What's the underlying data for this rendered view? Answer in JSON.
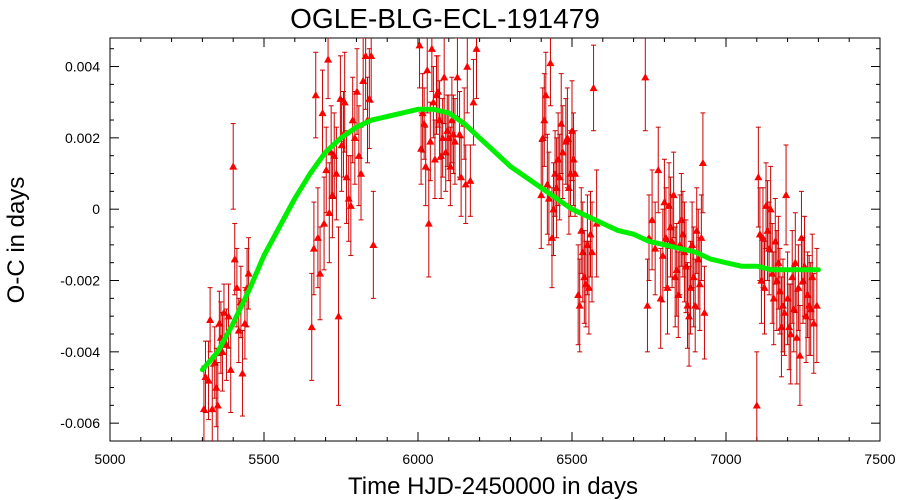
{
  "chart_data": {
    "type": "scatter",
    "title": "OGLE-BLG-ECL-191479",
    "xlabel": "Time HJD-2450000 in days",
    "ylabel": "O-C in days",
    "xlim": [
      5000,
      7500
    ],
    "ylim": [
      -0.0065,
      0.0048
    ],
    "xticks": [
      5000,
      5500,
      6000,
      6500,
      7000,
      7500
    ],
    "xtick_labels": [
      "5000",
      "5500",
      "6000",
      "6500",
      "7000",
      "7500"
    ],
    "yticks": [
      -0.006,
      -0.004,
      -0.002,
      0,
      0.002,
      0.004
    ],
    "ytick_labels": [
      "-0.006",
      "-0.004",
      "-0.002",
      "0",
      "0.002",
      "0.004"
    ],
    "grid": false,
    "legend": "none",
    "colors": {
      "points": "#ff0000",
      "errorbars": "#cc0000",
      "fit": "#00ee00"
    },
    "series": [
      {
        "marker": "triangle",
        "points": [
          [
            5305,
            -0.0056,
            0.0012
          ],
          [
            5310,
            -0.0047,
            0.001
          ],
          [
            5320,
            -0.0048,
            0.0011
          ],
          [
            5325,
            -0.0031,
            0.0009
          ],
          [
            5332,
            -0.0056,
            0.0012
          ],
          [
            5340,
            -0.0043,
            0.001
          ],
          [
            5345,
            -0.005,
            0.0011
          ],
          [
            5350,
            -0.0055,
            0.0012
          ],
          [
            5355,
            -0.0032,
            0.0009
          ],
          [
            5360,
            -0.0036,
            0.001
          ],
          [
            5365,
            -0.004,
            0.0011
          ],
          [
            5370,
            -0.0029,
            0.0008
          ],
          [
            5378,
            -0.0038,
            0.001
          ],
          [
            5385,
            -0.003,
            0.0009
          ],
          [
            5392,
            -0.0045,
            0.0012
          ],
          [
            5400,
            0.0012,
            0.0012
          ],
          [
            5405,
            -0.0014,
            0.001
          ],
          [
            5412,
            -0.0022,
            0.0011
          ],
          [
            5418,
            -0.0034,
            0.0009
          ],
          [
            5425,
            -0.0026,
            0.001
          ],
          [
            5430,
            -0.0046,
            0.0012
          ],
          [
            5438,
            -0.0032,
            0.001
          ],
          [
            5445,
            -0.0022,
            0.0011
          ],
          [
            5450,
            -0.0018,
            0.001
          ],
          [
            5655,
            -0.0033,
            0.0015
          ],
          [
            5662,
            -0.0011,
            0.0013
          ],
          [
            5668,
            0.0032,
            0.0012
          ],
          [
            5675,
            -0.0008,
            0.0014
          ],
          [
            5682,
            -0.0018,
            0.0013
          ],
          [
            5690,
            0.0027,
            0.0012
          ],
          [
            5695,
            -0.0004,
            0.0013
          ],
          [
            5702,
            0.0011,
            0.0012
          ],
          [
            5708,
            0.0042,
            0.0011
          ],
          [
            5712,
            -0.0001,
            0.0014
          ],
          [
            5718,
            0.0016,
            0.0013
          ],
          [
            5722,
            0.0004,
            0.0012
          ],
          [
            5728,
            0.0015,
            0.0012
          ],
          [
            5735,
            0.001,
            0.0013
          ],
          [
            5742,
            -0.003,
            0.0025
          ],
          [
            5748,
            0.0031,
            0.0012
          ],
          [
            5752,
            0.0018,
            0.0013
          ],
          [
            5758,
            0.0021,
            0.0012
          ],
          [
            5762,
            0.003,
            0.0014
          ],
          [
            5768,
            0.0009,
            0.0013
          ],
          [
            5775,
            0.0003,
            0.0012
          ],
          [
            5782,
            0.0001,
            0.0014
          ],
          [
            5788,
            0.0025,
            0.0012
          ],
          [
            5795,
            0.002,
            0.0013
          ],
          [
            5802,
            0.0033,
            0.0012
          ],
          [
            5808,
            0.0015,
            0.0014
          ],
          [
            5815,
            0.001,
            0.0013
          ],
          [
            5822,
            0.0036,
            0.0012
          ],
          [
            5830,
            0.0043,
            0.0015
          ],
          [
            5836,
            0.0025,
            0.0012
          ],
          [
            5842,
            0.0031,
            0.0014
          ],
          [
            5848,
            0.0043,
            0.0013
          ],
          [
            5855,
            -0.001,
            0.0015
          ],
          [
            6005,
            0.0046,
            0.0012
          ],
          [
            6010,
            0.0017,
            0.001
          ],
          [
            6015,
            0.0027,
            0.0011
          ],
          [
            6020,
            0.0024,
            0.001
          ],
          [
            6025,
            0.0012,
            0.0011
          ],
          [
            6030,
            0.0039,
            0.0012
          ],
          [
            6035,
            -0.0004,
            0.0015
          ],
          [
            6040,
            0.0019,
            0.0011
          ],
          [
            6045,
            0.0045,
            0.0012
          ],
          [
            6050,
            0.003,
            0.001
          ],
          [
            6055,
            0.0014,
            0.0011
          ],
          [
            6060,
            0.0032,
            0.0011
          ],
          [
            6065,
            0.0033,
            0.001
          ],
          [
            6070,
            0.0025,
            0.0011
          ],
          [
            6075,
            0.0015,
            0.0012
          ],
          [
            6080,
            0.002,
            0.0011
          ],
          [
            6085,
            0.0037,
            0.0013
          ],
          [
            6090,
            0.0016,
            0.0011
          ],
          [
            6095,
            0.0022,
            0.001
          ],
          [
            6100,
            0.002,
            0.0012
          ],
          [
            6105,
            0.0012,
            0.0011
          ],
          [
            6110,
            0.0025,
            0.0012
          ],
          [
            6115,
            0.0021,
            0.0011
          ],
          [
            6120,
            0.0019,
            0.0012
          ],
          [
            6128,
            0.0037,
            0.0011
          ],
          [
            6135,
            0.0021,
            0.0012
          ],
          [
            6140,
            0.0009,
            0.0011
          ],
          [
            6150,
            0.0024,
            0.001
          ],
          [
            6155,
            0.0007,
            0.0011
          ],
          [
            6160,
            0.004,
            0.0013
          ],
          [
            6170,
            0.0008,
            0.001
          ],
          [
            6180,
            0.003,
            0.0012
          ],
          [
            6190,
            0.0045,
            0.0014
          ],
          [
            6400,
            0.0004,
            0.0015
          ],
          [
            6405,
            0.002,
            0.0014
          ],
          [
            6410,
            0.0025,
            0.0013
          ],
          [
            6415,
            0.0032,
            0.0012
          ],
          [
            6420,
            0.0007,
            0.0014
          ],
          [
            6425,
            0.0003,
            0.0013
          ],
          [
            6430,
            0.0041,
            0.0012
          ],
          [
            6435,
            -0.0008,
            0.0014
          ],
          [
            6440,
            0.0,
            0.0013
          ],
          [
            6445,
            0.001,
            0.0012
          ],
          [
            6450,
            0.0006,
            0.0014
          ],
          [
            6455,
            0.0014,
            0.0013
          ],
          [
            6460,
            0.0009,
            0.0012
          ],
          [
            6465,
            0.0024,
            0.0014
          ],
          [
            6470,
            0.0016,
            0.0013
          ],
          [
            6480,
            0.0019,
            0.0012
          ],
          [
            6485,
            0.002,
            0.0014
          ],
          [
            6490,
            0.0006,
            0.0013
          ],
          [
            6495,
            0.001,
            0.0012
          ],
          [
            6500,
            0.0022,
            0.0014
          ],
          [
            6505,
            0.0014,
            0.0013
          ],
          [
            6510,
            0.001,
            0.0012
          ],
          [
            6520,
            -0.0024,
            0.0014
          ],
          [
            6525,
            -0.0027,
            0.0013
          ],
          [
            6530,
            -0.0006,
            0.0012
          ],
          [
            6535,
            -0.0012,
            0.0014
          ],
          [
            6540,
            -0.0019,
            0.0013
          ],
          [
            6545,
            -0.0021,
            0.0012
          ],
          [
            6550,
            -0.001,
            0.0014
          ],
          [
            6555,
            -0.0022,
            0.0013
          ],
          [
            6560,
            -0.0007,
            0.0012
          ],
          [
            6565,
            -0.0012,
            0.0014
          ],
          [
            6570,
            0.0034,
            0.0012
          ],
          [
            6580,
            -0.0004,
            0.0015
          ],
          [
            6738,
            0.0037,
            0.0015
          ],
          [
            6745,
            -0.0027,
            0.0013
          ],
          [
            6750,
            -0.0008,
            0.0012
          ],
          [
            6760,
            -0.0003,
            0.0014
          ],
          [
            6770,
            -0.0011,
            0.0013
          ],
          [
            6780,
            0.0011,
            0.0012
          ],
          [
            6788,
            -0.0025,
            0.0014
          ],
          [
            6795,
            -0.0013,
            0.0013
          ],
          [
            6800,
            0.0002,
            0.0012
          ],
          [
            6805,
            -0.0008,
            0.0014
          ],
          [
            6810,
            -0.0022,
            0.0013
          ],
          [
            6815,
            0.0001,
            0.0012
          ],
          [
            6820,
            -0.0005,
            0.0014
          ],
          [
            6825,
            -0.0009,
            0.0013
          ],
          [
            6830,
            0.0004,
            0.0012
          ],
          [
            6835,
            -0.0019,
            0.0014
          ],
          [
            6840,
            -0.0017,
            0.0013
          ],
          [
            6845,
            -0.0024,
            0.0012
          ],
          [
            6850,
            -0.001,
            0.0014
          ],
          [
            6855,
            -0.0003,
            0.0013
          ],
          [
            6860,
            -0.0007,
            0.0012
          ],
          [
            6865,
            -0.0012,
            0.0014
          ],
          [
            6870,
            -0.0016,
            0.0013
          ],
          [
            6875,
            -0.0027,
            0.0012
          ],
          [
            6880,
            -0.003,
            0.0014
          ],
          [
            6885,
            -0.0022,
            0.0013
          ],
          [
            6890,
            -0.001,
            0.0012
          ],
          [
            6895,
            -0.0019,
            0.0014
          ],
          [
            6900,
            -0.0027,
            0.0013
          ],
          [
            6905,
            -0.0006,
            0.0012
          ],
          [
            6910,
            -0.0014,
            0.0014
          ],
          [
            6915,
            -0.0021,
            0.0013
          ],
          [
            6920,
            -0.0008,
            0.0012
          ],
          [
            6925,
            0.0013,
            0.0014
          ],
          [
            6930,
            -0.0029,
            0.0013
          ],
          [
            7100,
            -0.0055,
            0.0015
          ],
          [
            7105,
            0.0009,
            0.0014
          ],
          [
            7110,
            -0.0007,
            0.0013
          ],
          [
            7115,
            -0.002,
            0.0012
          ],
          [
            7120,
            -0.0008,
            0.0014
          ],
          [
            7125,
            -0.0022,
            0.0013
          ],
          [
            7130,
            0.0001,
            0.0012
          ],
          [
            7135,
            -0.0006,
            0.0014
          ],
          [
            7140,
            -0.0011,
            0.0013
          ],
          [
            7145,
            0.0,
            0.0012
          ],
          [
            7150,
            -0.0018,
            0.0014
          ],
          [
            7155,
            -0.0025,
            0.0013
          ],
          [
            7160,
            -0.0009,
            0.0012
          ],
          [
            7165,
            -0.002,
            0.0014
          ],
          [
            7170,
            -0.0015,
            0.0013
          ],
          [
            7175,
            -0.0023,
            0.0012
          ],
          [
            7180,
            -0.0033,
            0.0014
          ],
          [
            7185,
            -0.0027,
            0.0013
          ],
          [
            7190,
            -0.0029,
            0.0012
          ],
          [
            7195,
            0.0004,
            0.0014
          ],
          [
            7200,
            -0.0025,
            0.0013
          ],
          [
            7205,
            -0.0033,
            0.0012
          ],
          [
            7210,
            -0.0035,
            0.0014
          ],
          [
            7215,
            -0.0019,
            0.0013
          ],
          [
            7220,
            -0.0028,
            0.0012
          ],
          [
            7225,
            -0.0015,
            0.0014
          ],
          [
            7230,
            -0.0036,
            0.0013
          ],
          [
            7235,
            -0.0022,
            0.0012
          ],
          [
            7240,
            -0.0041,
            0.0014
          ],
          [
            7245,
            -0.0008,
            0.0013
          ],
          [
            7250,
            -0.002,
            0.0012
          ],
          [
            7255,
            -0.0016,
            0.0014
          ],
          [
            7260,
            -0.003,
            0.0013
          ],
          [
            7265,
            -0.0024,
            0.0012
          ],
          [
            7270,
            -0.0027,
            0.0014
          ],
          [
            7275,
            -0.0028,
            0.0013
          ],
          [
            7280,
            -0.0019,
            0.0012
          ],
          [
            7285,
            -0.0032,
            0.0014
          ],
          [
            7295,
            -0.0027,
            0.0016
          ]
        ]
      },
      {
        "type": "line",
        "points": [
          [
            5300,
            -0.0045
          ],
          [
            5350,
            -0.004
          ],
          [
            5400,
            -0.0032
          ],
          [
            5450,
            -0.0023
          ],
          [
            5500,
            -0.0013
          ],
          [
            5550,
            -0.0005
          ],
          [
            5600,
            0.0003
          ],
          [
            5650,
            0.001
          ],
          [
            5700,
            0.0016
          ],
          [
            5750,
            0.002
          ],
          [
            5800,
            0.0023
          ],
          [
            5850,
            0.0025
          ],
          [
            5900,
            0.0026
          ],
          [
            5950,
            0.0027
          ],
          [
            6000,
            0.0028
          ],
          [
            6050,
            0.0028
          ],
          [
            6100,
            0.0027
          ],
          [
            6150,
            0.0024
          ],
          [
            6200,
            0.002
          ],
          [
            6250,
            0.0016
          ],
          [
            6300,
            0.0012
          ],
          [
            6350,
            0.0009
          ],
          [
            6400,
            0.0006
          ],
          [
            6450,
            0.0003
          ],
          [
            6500,
            0.0
          ],
          [
            6550,
            -0.0002
          ],
          [
            6600,
            -0.0004
          ],
          [
            6650,
            -0.0006
          ],
          [
            6700,
            -0.0007
          ],
          [
            6750,
            -0.0009
          ],
          [
            6800,
            -0.001
          ],
          [
            6850,
            -0.0011
          ],
          [
            6900,
            -0.0012
          ],
          [
            6950,
            -0.0014
          ],
          [
            7000,
            -0.0015
          ],
          [
            7050,
            -0.0016
          ],
          [
            7100,
            -0.0016
          ],
          [
            7150,
            -0.0017
          ],
          [
            7200,
            -0.0017
          ],
          [
            7250,
            -0.0017
          ],
          [
            7300,
            -0.0017
          ]
        ]
      }
    ]
  }
}
